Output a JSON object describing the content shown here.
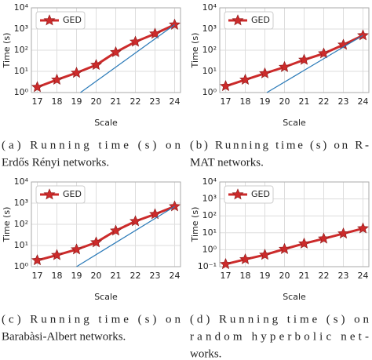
{
  "chart_data": [
    {
      "type": "line",
      "xlabel": "Scale",
      "ylabel": "Time (s)",
      "log_y": true,
      "grid": true,
      "legend": "upper left",
      "x": [
        17,
        18,
        19,
        20,
        21,
        22,
        23,
        24
      ],
      "xlim": [
        16.7,
        24.3
      ],
      "xticks": [
        17,
        18,
        19,
        20,
        21,
        22,
        23,
        24
      ],
      "ylim": [
        1,
        10000
      ],
      "yticks": [
        {
          "value": 1,
          "label": "10⁰"
        },
        {
          "value": 10,
          "label": "10¹"
        },
        {
          "value": 100,
          "label": "10²"
        },
        {
          "value": 1000,
          "label": "10³"
        },
        {
          "value": 10000,
          "label": "10⁴"
        }
      ],
      "series": [
        {
          "name": "GED",
          "color": "#cc2b2b",
          "values": [
            1.8,
            4,
            8.5,
            20,
            80,
            250,
            600,
            1600
          ]
        },
        {
          "color": "#2a7ab8",
          "x": [
            19.2,
            24
          ],
          "values": [
            1,
            1600
          ]
        }
      ]
    },
    {
      "type": "line",
      "xlabel": "Scale",
      "ylabel": "Time (s)",
      "log_y": true,
      "grid": true,
      "legend": "upper left",
      "x": [
        17,
        18,
        19,
        20,
        21,
        22,
        23,
        24
      ],
      "xlim": [
        16.7,
        24.3
      ],
      "xticks": [
        17,
        18,
        19,
        20,
        21,
        22,
        23,
        24
      ],
      "ylim": [
        1,
        10000
      ],
      "yticks": [
        {
          "value": 1,
          "label": "10⁰"
        },
        {
          "value": 10,
          "label": "10¹"
        },
        {
          "value": 100,
          "label": "10²"
        },
        {
          "value": 1000,
          "label": "10³"
        },
        {
          "value": 10000,
          "label": "10⁴"
        }
      ],
      "series": [
        {
          "name": "GED",
          "color": "#cc2b2b",
          "values": [
            2,
            4,
            8,
            16,
            35,
            70,
            180,
            500
          ]
        },
        {
          "color": "#2a7ab8",
          "x": [
            19.1,
            24
          ],
          "values": [
            1,
            500
          ]
        }
      ]
    },
    {
      "type": "line",
      "xlabel": "Scale",
      "ylabel": "Time (s)",
      "log_y": true,
      "grid": true,
      "legend": "upper left",
      "x": [
        17,
        18,
        19,
        20,
        21,
        22,
        23,
        24
      ],
      "xlim": [
        16.7,
        24.3
      ],
      "xticks": [
        17,
        18,
        19,
        20,
        21,
        22,
        23,
        24
      ],
      "ylim": [
        1,
        10000
      ],
      "yticks": [
        {
          "value": 1,
          "label": "10⁰"
        },
        {
          "value": 10,
          "label": "10¹"
        },
        {
          "value": 100,
          "label": "10²"
        },
        {
          "value": 1000,
          "label": "10³"
        },
        {
          "value": 10000,
          "label": "10⁴"
        }
      ],
      "series": [
        {
          "name": "GED",
          "color": "#cc2b2b",
          "values": [
            2,
            3.5,
            6.5,
            14,
            50,
            140,
            300,
            700
          ]
        },
        {
          "color": "#2a7ab8",
          "x": [
            19,
            24
          ],
          "values": [
            1,
            700
          ]
        }
      ]
    },
    {
      "type": "line",
      "xlabel": "Scale",
      "ylabel": "Time (s)",
      "log_y": true,
      "grid": true,
      "legend": "upper left",
      "x": [
        17,
        18,
        19,
        20,
        21,
        22,
        23,
        24
      ],
      "xlim": [
        16.7,
        24.3
      ],
      "xticks": [
        17,
        18,
        19,
        20,
        21,
        22,
        23,
        24
      ],
      "ylim": [
        0.1,
        10000
      ],
      "yticks": [
        {
          "value": 0.1,
          "label": "10⁻¹"
        },
        {
          "value": 1,
          "label": "10⁰"
        },
        {
          "value": 10,
          "label": "10¹"
        },
        {
          "value": 100,
          "label": "10²"
        },
        {
          "value": 1000,
          "label": "10³"
        },
        {
          "value": 10000,
          "label": "10⁴"
        }
      ],
      "series": [
        {
          "name": "GED",
          "color": "#cc2b2b",
          "values": [
            0.14,
            0.27,
            0.5,
            1.1,
            2.3,
            4.5,
            9,
            18
          ]
        }
      ]
    }
  ],
  "captions": [
    [
      "(a) Running time (s) on",
      "Erdős Rényi networks."
    ],
    [
      "(b) Running time (s) on R-",
      "MAT networks."
    ],
    [
      "(c) Running time (s) on",
      "Barabàsi-Albert networks."
    ],
    [
      "(d) Running time (s) on",
      "random hyperbolic net-",
      "works."
    ]
  ]
}
